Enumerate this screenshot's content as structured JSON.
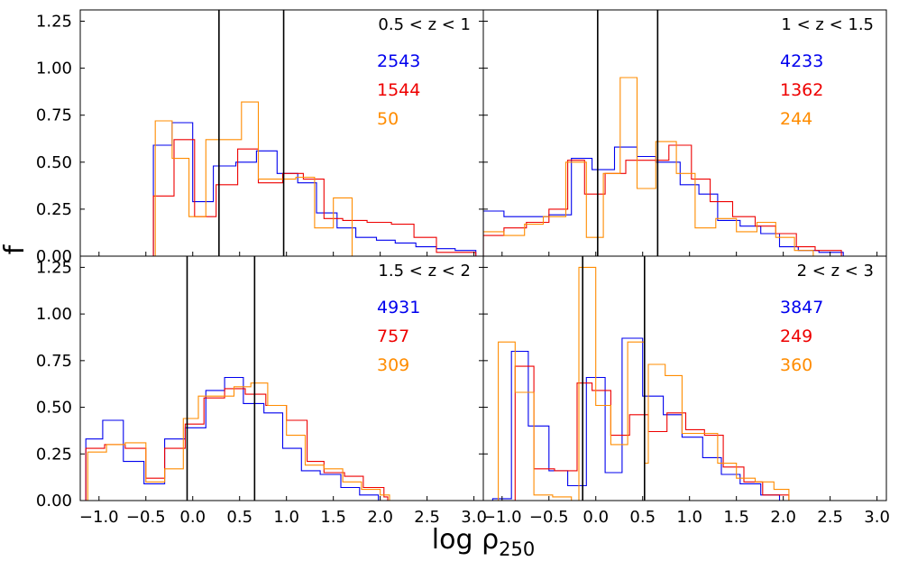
{
  "chart_data": {
    "type": "histogram-grid",
    "xlabel": "log ρ250",
    "xlabel_main": "log ρ",
    "xlabel_sub": "250",
    "ylabel": "f",
    "xlim": [
      -1.2,
      3.1
    ],
    "ylim": [
      0,
      1.31
    ],
    "x_ticks": [
      -1.0,
      -0.5,
      0.0,
      0.5,
      1.0,
      1.5,
      2.0,
      2.5,
      3.0
    ],
    "x_tick_labels": [
      "−1.0",
      "−0.5",
      "0.0",
      "0.5",
      "1.0",
      "1.5",
      "2.0",
      "2.5",
      "3.0"
    ],
    "y_ticks": [
      0.0,
      0.25,
      0.5,
      0.75,
      1.0,
      1.25
    ],
    "y_tick_labels": [
      "0.00",
      "0.25",
      "0.50",
      "0.75",
      "1.00",
      "1.25"
    ],
    "series_colors": [
      "#0000ee",
      "#ee0000",
      "#ff8c00"
    ],
    "panels": [
      {
        "label": "0.5 < z < 1",
        "vlines": [
          0.28,
          0.97
        ],
        "counts": [
          "2543",
          "1544",
          "50"
        ],
        "series": [
          {
            "values": [
              [
                -0.42,
                0.59
              ],
              [
                -0.22,
                0.71
              ],
              [
                0.0,
                0.29
              ],
              [
                0.22,
                0.48
              ],
              [
                0.46,
                0.5
              ],
              [
                0.68,
                0.56
              ],
              [
                0.9,
                0.44
              ],
              [
                1.12,
                0.39
              ],
              [
                1.32,
                0.23
              ],
              [
                1.54,
                0.15
              ],
              [
                1.74,
                0.1
              ],
              [
                1.96,
                0.085
              ],
              [
                2.16,
                0.07
              ],
              [
                2.38,
                0.05
              ],
              [
                2.6,
                0.04
              ],
              [
                2.8,
                0.03
              ],
              [
                3.02,
                0.0
              ]
            ]
          },
          {
            "values": [
              [
                -0.42,
                0.32
              ],
              [
                -0.2,
                0.62
              ],
              [
                0.02,
                0.21
              ],
              [
                0.25,
                0.38
              ],
              [
                0.48,
                0.57
              ],
              [
                0.7,
                0.39
              ],
              [
                0.96,
                0.44
              ],
              [
                1.18,
                0.41
              ],
              [
                1.4,
                0.2
              ],
              [
                1.6,
                0.19
              ],
              [
                1.86,
                0.18
              ],
              [
                2.12,
                0.17
              ],
              [
                2.36,
                0.1
              ],
              [
                2.6,
                0.02
              ],
              [
                3.02,
                0.0
              ]
            ]
          },
          {
            "values": [
              [
                -0.4,
                0.72
              ],
              [
                -0.22,
                0.52
              ],
              [
                -0.04,
                0.21
              ],
              [
                0.14,
                0.62
              ],
              [
                0.52,
                0.82
              ],
              [
                0.7,
                0.41
              ],
              [
                1.1,
                0.42
              ],
              [
                1.3,
                0.15
              ],
              [
                1.5,
                0.31
              ],
              [
                1.7,
                0.0
              ]
            ]
          }
        ]
      },
      {
        "label": "1 < z < 1.5",
        "vlines": [
          0.02,
          0.66
        ],
        "counts": [
          "4233",
          "1362",
          "244"
        ],
        "series": [
          {
            "values": [
              [
                -1.2,
                0.24
              ],
              [
                -0.98,
                0.21
              ],
              [
                -0.74,
                0.21
              ],
              [
                -0.5,
                0.22
              ],
              [
                -0.26,
                0.52
              ],
              [
                -0.04,
                0.46
              ],
              [
                0.2,
                0.58
              ],
              [
                0.44,
                0.53
              ],
              [
                0.64,
                0.5
              ],
              [
                0.9,
                0.38
              ],
              [
                1.1,
                0.33
              ],
              [
                1.3,
                0.19
              ],
              [
                1.54,
                0.16
              ],
              [
                1.76,
                0.12
              ],
              [
                1.96,
                0.05
              ],
              [
                2.16,
                0.03
              ],
              [
                2.38,
                0.02
              ],
              [
                2.64,
                0.0
              ]
            ]
          },
          {
            "values": [
              [
                -1.2,
                0.11
              ],
              [
                -0.98,
                0.15
              ],
              [
                -0.74,
                0.18
              ],
              [
                -0.5,
                0.25
              ],
              [
                -0.3,
                0.51
              ],
              [
                -0.12,
                0.33
              ],
              [
                0.1,
                0.44
              ],
              [
                0.32,
                0.51
              ],
              [
                0.56,
                0.51
              ],
              [
                0.78,
                0.59
              ],
              [
                1.02,
                0.41
              ],
              [
                1.22,
                0.29
              ],
              [
                1.46,
                0.21
              ],
              [
                1.7,
                0.16
              ],
              [
                1.92,
                0.12
              ],
              [
                2.14,
                0.05
              ],
              [
                2.34,
                0.03
              ],
              [
                2.62,
                0.0
              ]
            ]
          },
          {
            "values": [
              [
                -1.2,
                0.13
              ],
              [
                -0.98,
                0.11
              ],
              [
                -0.76,
                0.17
              ],
              [
                -0.56,
                0.21
              ],
              [
                -0.32,
                0.5
              ],
              [
                -0.1,
                0.1
              ],
              [
                0.08,
                0.44
              ],
              [
                0.26,
                0.95
              ],
              [
                0.44,
                0.36
              ],
              [
                0.64,
                0.61
              ],
              [
                0.86,
                0.44
              ],
              [
                1.06,
                0.15
              ],
              [
                1.28,
                0.2
              ],
              [
                1.5,
                0.13
              ],
              [
                1.72,
                0.18
              ],
              [
                1.92,
                0.1
              ],
              [
                2.12,
                0.03
              ],
              [
                2.32,
                0.0
              ]
            ]
          }
        ]
      },
      {
        "label": "1.5 < z < 2",
        "vlines": [
          -0.06,
          0.66
        ],
        "counts": [
          "4931",
          "757",
          "309"
        ],
        "series": [
          {
            "values": [
              [
                -1.14,
                0.33
              ],
              [
                -0.96,
                0.43
              ],
              [
                -0.74,
                0.21
              ],
              [
                -0.52,
                0.09
              ],
              [
                -0.3,
                0.33
              ],
              [
                -0.08,
                0.39
              ],
              [
                0.14,
                0.59
              ],
              [
                0.34,
                0.66
              ],
              [
                0.54,
                0.52
              ],
              [
                0.76,
                0.47
              ],
              [
                0.96,
                0.28
              ],
              [
                1.16,
                0.16
              ],
              [
                1.36,
                0.14
              ],
              [
                1.58,
                0.07
              ],
              [
                1.78,
                0.03
              ],
              [
                1.98,
                0.0
              ]
            ]
          },
          {
            "values": [
              [
                -1.14,
                0.28
              ],
              [
                -0.94,
                0.3
              ],
              [
                -0.72,
                0.28
              ],
              [
                -0.5,
                0.12
              ],
              [
                -0.3,
                0.28
              ],
              [
                -0.08,
                0.41
              ],
              [
                0.12,
                0.55
              ],
              [
                0.34,
                0.6
              ],
              [
                0.56,
                0.57
              ],
              [
                0.78,
                0.51
              ],
              [
                1.0,
                0.43
              ],
              [
                1.22,
                0.21
              ],
              [
                1.4,
                0.15
              ],
              [
                1.62,
                0.13
              ],
              [
                1.82,
                0.07
              ],
              [
                2.04,
                0.02
              ],
              [
                2.08,
                0.0
              ]
            ]
          },
          {
            "values": [
              [
                -1.12,
                0.26
              ],
              [
                -0.92,
                0.3
              ],
              [
                -0.72,
                0.31
              ],
              [
                -0.5,
                0.1
              ],
              [
                -0.3,
                0.17
              ],
              [
                -0.1,
                0.44
              ],
              [
                0.06,
                0.56
              ],
              [
                0.28,
                0.56
              ],
              [
                0.44,
                0.61
              ],
              [
                0.62,
                0.63
              ],
              [
                0.8,
                0.51
              ],
              [
                1.0,
                0.35
              ],
              [
                1.2,
                0.19
              ],
              [
                1.4,
                0.17
              ],
              [
                1.6,
                0.1
              ],
              [
                1.8,
                0.06
              ],
              [
                2.0,
                0.03
              ],
              [
                2.1,
                0.0
              ]
            ]
          }
        ]
      },
      {
        "label": "2 < z < 3",
        "vlines": [
          -0.14,
          0.52
        ],
        "counts": [
          "3847",
          "249",
          "360"
        ],
        "series": [
          {
            "values": [
              [
                -1.1,
                0.01
              ],
              [
                -0.9,
                0.8
              ],
              [
                -0.72,
                0.4
              ],
              [
                -0.5,
                0.16
              ],
              [
                -0.3,
                0.08
              ],
              [
                -0.1,
                0.66
              ],
              [
                0.1,
                0.15
              ],
              [
                0.28,
                0.87
              ],
              [
                0.5,
                0.56
              ],
              [
                0.72,
                0.46
              ],
              [
                0.92,
                0.34
              ],
              [
                1.14,
                0.23
              ],
              [
                1.34,
                0.14
              ],
              [
                1.54,
                0.09
              ],
              [
                1.76,
                0.03
              ],
              [
                1.96,
                0.0
              ]
            ]
          },
          {
            "values": [
              [
                -1.1,
                0.0
              ],
              [
                -0.86,
                0.72
              ],
              [
                -0.66,
                0.17
              ],
              [
                -0.44,
                0.16
              ],
              [
                -0.2,
                0.63
              ],
              [
                -0.04,
                0.59
              ],
              [
                0.16,
                0.35
              ],
              [
                0.36,
                0.46
              ],
              [
                0.56,
                0.37
              ],
              [
                0.76,
                0.47
              ],
              [
                0.96,
                0.38
              ],
              [
                1.16,
                0.35
              ],
              [
                1.36,
                0.18
              ],
              [
                1.58,
                0.1
              ],
              [
                1.78,
                0.03
              ],
              [
                2.06,
                0.0
              ]
            ]
          },
          {
            "values": [
              [
                -1.04,
                0.85
              ],
              [
                -0.86,
                0.58
              ],
              [
                -0.66,
                0.03
              ],
              [
                -0.46,
                0.02
              ],
              [
                -0.26,
                0.0
              ],
              [
                -0.18,
                1.25
              ],
              [
                0.0,
                0.51
              ],
              [
                0.16,
                0.3
              ],
              [
                0.34,
                0.85
              ],
              [
                0.52,
                0.2
              ],
              [
                0.56,
                0.73
              ],
              [
                0.74,
                0.67
              ],
              [
                0.92,
                0.36
              ],
              [
                1.12,
                0.36
              ],
              [
                1.3,
                0.2
              ],
              [
                1.5,
                0.12
              ],
              [
                1.7,
                0.1
              ],
              [
                1.9,
                0.06
              ],
              [
                2.06,
                0.0
              ]
            ]
          }
        ]
      }
    ]
  }
}
